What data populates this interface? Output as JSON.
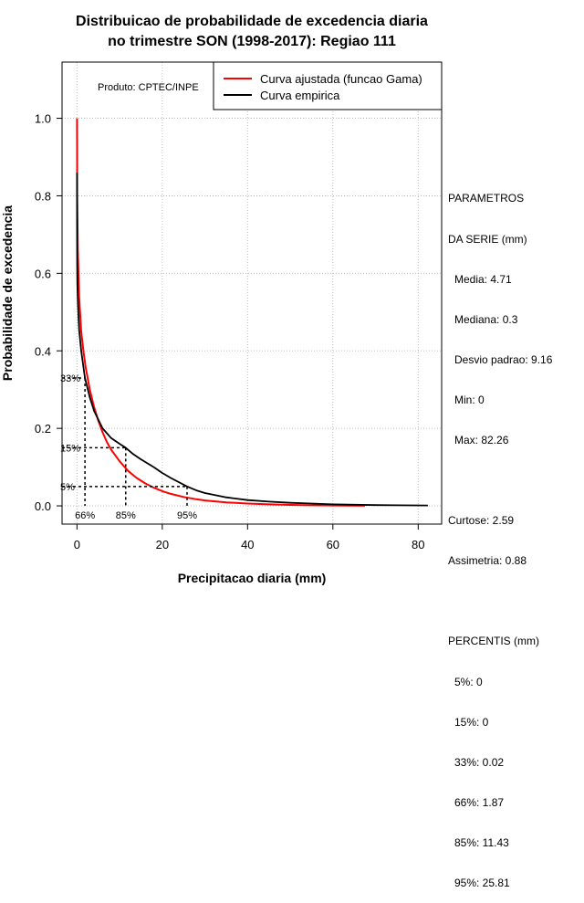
{
  "chart_data": {
    "type": "line",
    "title_line1": "Distribuicao de probabilidade de excedencia diaria",
    "title_line2": "no trimestre SON (1998-2017): Regiao 111",
    "xlabel": "Precipitacao diaria (mm)",
    "ylabel": "Probabilidade de excedencia",
    "xlim": [
      -3.5,
      85.5
    ],
    "ylim": [
      -0.047,
      1.145
    ],
    "xticks": [
      "0",
      "20",
      "40",
      "60",
      "80"
    ],
    "yticks": [
      "0.0",
      "0.2",
      "0.4",
      "0.6",
      "0.8",
      "1.0"
    ],
    "product_label": "Produto: CPTEC/INPE",
    "legend": {
      "position": "top-right",
      "entries": [
        {
          "label": "Curva ajustada (funcao Gama)",
          "color": "#ff0000"
        },
        {
          "label": "Curva empirica",
          "color": "#000000"
        }
      ]
    },
    "series": [
      {
        "name": "Curva ajustada (funcao Gama)",
        "color": "#ff0000",
        "x": [
          0,
          0.05,
          0.2,
          0.5,
          1,
          1.5,
          2,
          3,
          4,
          5,
          6,
          7,
          8,
          10,
          12,
          14,
          16,
          18,
          20,
          22,
          25,
          28,
          30,
          35,
          40,
          45,
          50,
          55,
          60,
          65,
          67.5
        ],
        "y": [
          1.0,
          0.8,
          0.66,
          0.54,
          0.45,
          0.4,
          0.36,
          0.3,
          0.255,
          0.22,
          0.19,
          0.165,
          0.145,
          0.115,
          0.09,
          0.072,
          0.058,
          0.047,
          0.038,
          0.031,
          0.023,
          0.017,
          0.014,
          0.009,
          0.006,
          0.004,
          0.0025,
          0.0016,
          0.001,
          0.0006,
          0.0004
        ]
      },
      {
        "name": "Curva empirica",
        "color": "#000000",
        "x": [
          0,
          0.02,
          0.05,
          0.1,
          0.2,
          0.3,
          0.5,
          1,
          1.87,
          3,
          4,
          6,
          8,
          10,
          11.43,
          13,
          15,
          18,
          20,
          22,
          25.81,
          28,
          30,
          35,
          40,
          45,
          50,
          55,
          60,
          65,
          70,
          75,
          82.26
        ],
        "y": [
          0.86,
          0.67,
          0.62,
          0.57,
          0.53,
          0.5,
          0.455,
          0.4,
          0.33,
          0.28,
          0.245,
          0.2,
          0.175,
          0.16,
          0.15,
          0.135,
          0.12,
          0.1,
          0.085,
          0.072,
          0.05,
          0.04,
          0.033,
          0.022,
          0.015,
          0.011,
          0.008,
          0.006,
          0.004,
          0.003,
          0.002,
          0.0015,
          0.001
        ]
      }
    ],
    "annotations": [
      {
        "label": "33%",
        "probability": 0.33,
        "x": 1.87,
        "xlabel": "66%"
      },
      {
        "label": "15%",
        "probability": 0.15,
        "x": 11.43,
        "xlabel": "85%"
      },
      {
        "label": "5%",
        "probability": 0.05,
        "x": 25.81,
        "xlabel": "95%"
      }
    ],
    "grid": true
  },
  "stats": {
    "header1": "PARAMETROS",
    "header2": "DA SERIE (mm)",
    "media": "Media: 4.71",
    "mediana": "Mediana: 0.3",
    "desvio": "Desvio padrao: 9.16",
    "min": "Min: 0",
    "max": "Max: 82.26",
    "curtose": "Curtose: 2.59",
    "assimetria": "Assimetria: 0.88",
    "percentis_header": "PERCENTIS (mm)",
    "p5": "5%: 0",
    "p15": "15%: 0",
    "p33": "33%: 0.02",
    "p66": "66%: 1.87",
    "p85": "85%: 11.43",
    "p95": "95%: 25.81"
  }
}
